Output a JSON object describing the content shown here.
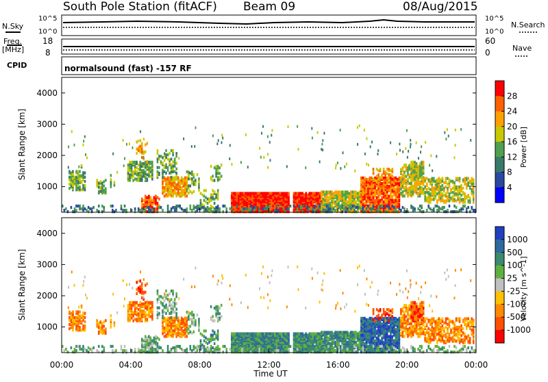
{
  "header": {
    "station": "South Pole Station (fitACF)",
    "beam": "Beam 09",
    "date": "08/Aug/2015"
  },
  "top_panels": {
    "nsky_label": "N.Sky",
    "nsky_ticks": [
      "10^5",
      "10^0"
    ],
    "nsearch_label": "N.Search",
    "nsearch_ticks": [
      "10^5",
      "10^0"
    ],
    "freq_label_1": "Freq.",
    "freq_label_2": "[MHz]",
    "freq_ticks": [
      "18",
      "8"
    ],
    "nave_label": "Nave",
    "nave_ticks": [
      "60",
      "0"
    ],
    "cpid_label": "CPID",
    "cpid_text": "normalsound (fast) -157 RF"
  },
  "chart_data": [
    {
      "type": "heatmap",
      "name": "power-panel",
      "ylabel": "Slant Range [km]",
      "xlabel": "",
      "ylim": [
        180,
        4500
      ],
      "yticks": [
        "1000",
        "2000",
        "3000",
        "4000"
      ],
      "colorbar_label": "Power [dB]",
      "colorbar_ticks": [
        "4",
        "8",
        "12",
        "16",
        "20",
        "24",
        "28"
      ],
      "colors": [
        "#0000ff",
        "#2a4aa0",
        "#3a7a6a",
        "#50a050",
        "#c8c800",
        "#ffa000",
        "#ff6000",
        "#ff0000"
      ],
      "x_hours": [
        0,
        24
      ]
    },
    {
      "type": "heatmap",
      "name": "velocity-panel",
      "ylabel": "Slant Range [km]",
      "xlabel": "Time UT",
      "ylim": [
        180,
        4500
      ],
      "yticks": [
        "1000",
        "2000",
        "3000",
        "4000"
      ],
      "xticks": [
        "00:00",
        "04:00",
        "08:00",
        "12:00",
        "16:00",
        "20:00",
        "00:00"
      ],
      "colorbar_label": "Velocity [m s^-1]",
      "colorbar_ticks": [
        "1000",
        "500",
        "100",
        "25",
        "-25",
        "-100",
        "-500",
        "-1000"
      ],
      "colors": [
        "#2040c0",
        "#2e6aa0",
        "#3a8a70",
        "#60b040",
        "#c0c0c0",
        "#ffc000",
        "#ff8a00",
        "#ff5000",
        "#ff0000"
      ],
      "x_hours": [
        0,
        24
      ]
    }
  ]
}
